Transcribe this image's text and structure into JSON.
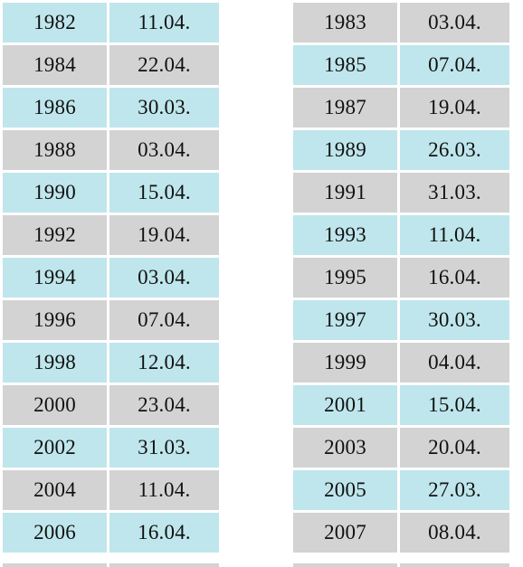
{
  "colors": {
    "cyan": "#bfe6ec",
    "gray": "#d3d3d3"
  },
  "tables": [
    {
      "rows": [
        {
          "year": "1982",
          "date": "11.04.",
          "tone": "cyan"
        },
        {
          "year": "1984",
          "date": "22.04.",
          "tone": "gray"
        },
        {
          "year": "1986",
          "date": "30.03.",
          "tone": "cyan"
        },
        {
          "year": "1988",
          "date": "03.04.",
          "tone": "gray"
        },
        {
          "year": "1990",
          "date": "15.04.",
          "tone": "cyan"
        },
        {
          "year": "1992",
          "date": "19.04.",
          "tone": "gray"
        },
        {
          "year": "1994",
          "date": "03.04.",
          "tone": "cyan"
        },
        {
          "year": "1996",
          "date": "07.04.",
          "tone": "gray"
        },
        {
          "year": "1998",
          "date": "12.04.",
          "tone": "cyan"
        },
        {
          "year": "2000",
          "date": "23.04.",
          "tone": "gray"
        },
        {
          "year": "2002",
          "date": "31.03.",
          "tone": "cyan"
        },
        {
          "year": "2004",
          "date": "11.04.",
          "tone": "gray"
        },
        {
          "year": "2006",
          "date": "16.04.",
          "tone": "cyan"
        }
      ]
    },
    {
      "rows": [
        {
          "year": "1983",
          "date": "03.04.",
          "tone": "gray"
        },
        {
          "year": "1985",
          "date": "07.04.",
          "tone": "cyan"
        },
        {
          "year": "1987",
          "date": "19.04.",
          "tone": "gray"
        },
        {
          "year": "1989",
          "date": "26.03.",
          "tone": "cyan"
        },
        {
          "year": "1991",
          "date": "31.03.",
          "tone": "gray"
        },
        {
          "year": "1993",
          "date": "11.04.",
          "tone": "cyan"
        },
        {
          "year": "1995",
          "date": "16.04.",
          "tone": "gray"
        },
        {
          "year": "1997",
          "date": "30.03.",
          "tone": "cyan"
        },
        {
          "year": "1999",
          "date": "04.04.",
          "tone": "gray"
        },
        {
          "year": "2001",
          "date": "15.04.",
          "tone": "cyan"
        },
        {
          "year": "2003",
          "date": "20.04.",
          "tone": "gray"
        },
        {
          "year": "2005",
          "date": "27.03.",
          "tone": "cyan"
        },
        {
          "year": "2007",
          "date": "08.04.",
          "tone": "gray"
        }
      ]
    }
  ]
}
